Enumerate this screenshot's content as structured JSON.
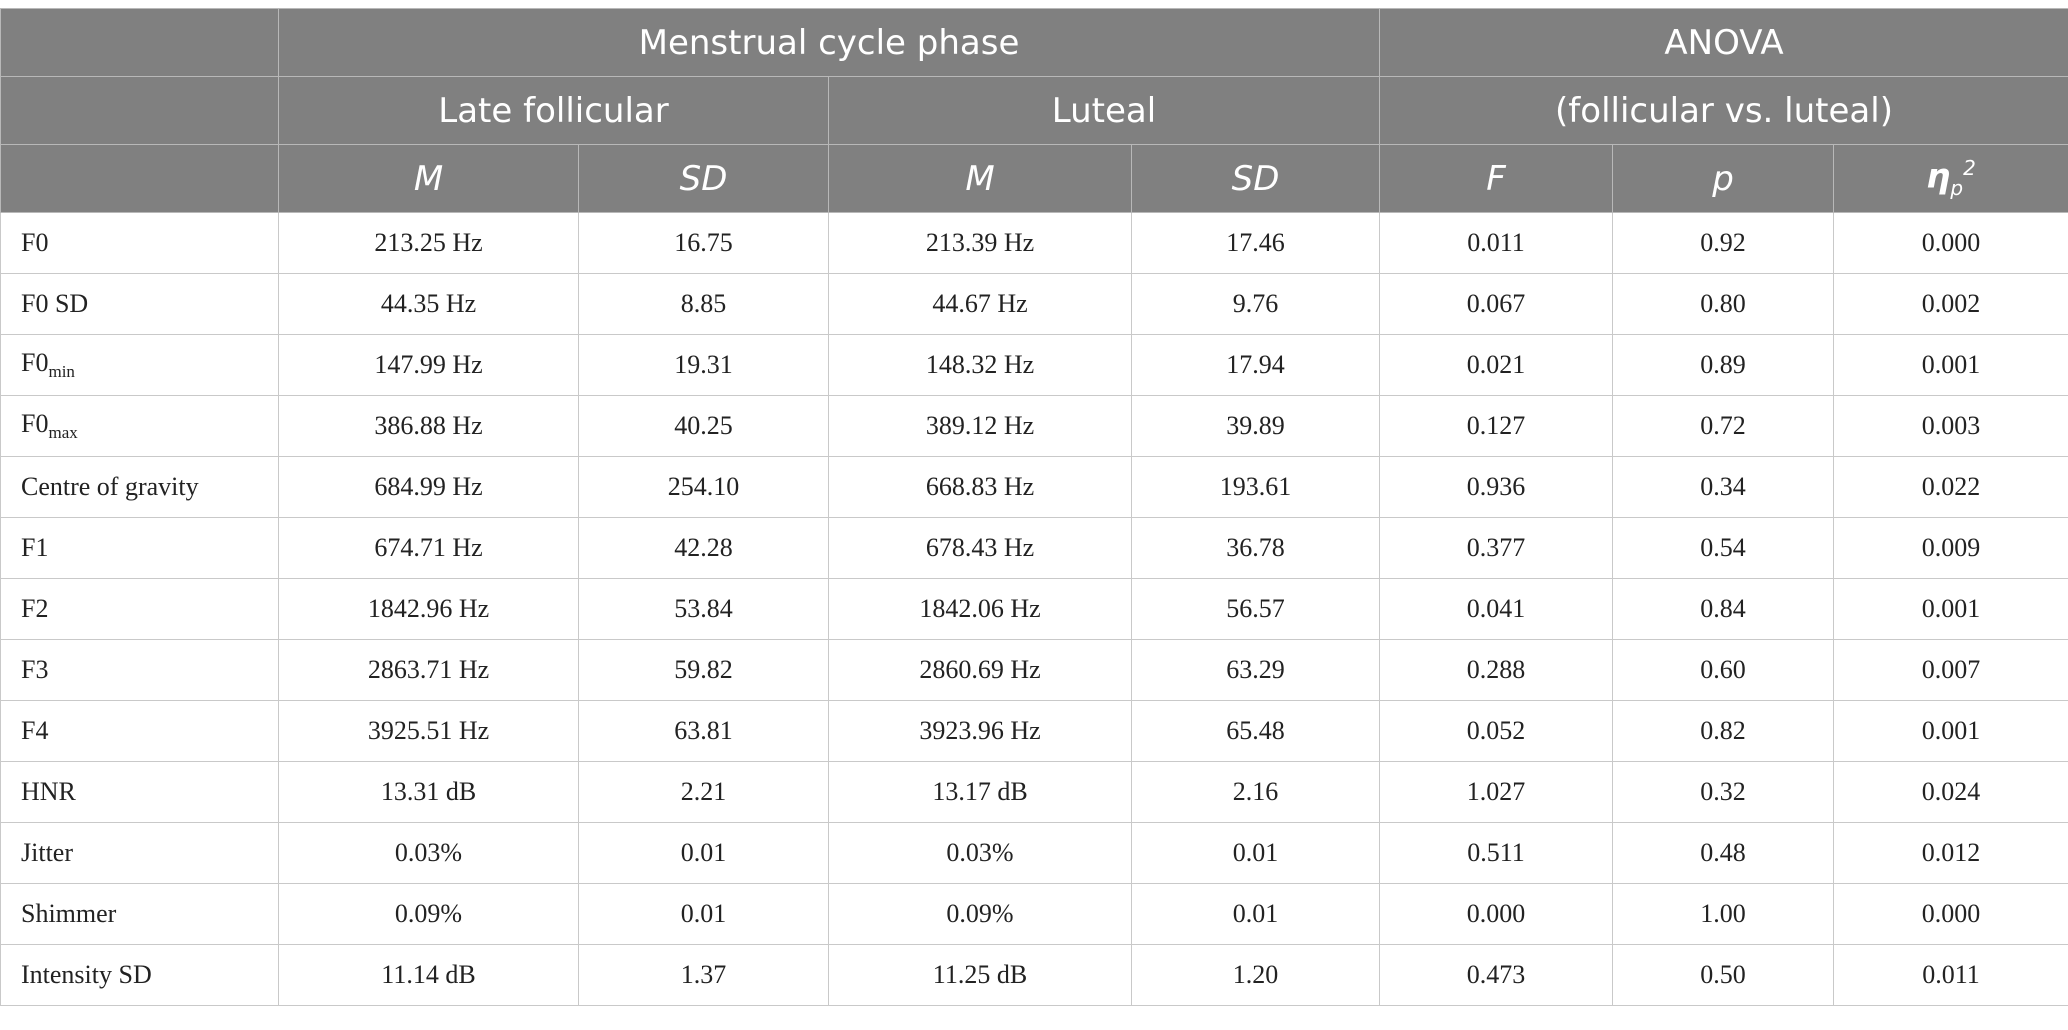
{
  "header": {
    "phase_title": "Menstrual cycle phase",
    "anova_title": "ANOVA",
    "anova_subtitle": "(follicular vs. luteal)",
    "late_follicular": "Late follicular",
    "luteal": "Luteal",
    "col_m": "M",
    "col_sd": "SD",
    "col_f": "F",
    "col_p": "p",
    "col_eta": "η",
    "col_eta_sub": "p",
    "col_eta_sup": "2"
  },
  "rows": [
    {
      "label": "F0",
      "sub": "",
      "fm": "213.25 Hz",
      "fsd": "16.75",
      "lm": "213.39 Hz",
      "lsd": "17.46",
      "f": "0.011",
      "p": "0.92",
      "eta": "0.000"
    },
    {
      "label": "F0 SD",
      "sub": "",
      "fm": "44.35 Hz",
      "fsd": "8.85",
      "lm": "44.67 Hz",
      "lsd": "9.76",
      "f": "0.067",
      "p": "0.80",
      "eta": "0.002"
    },
    {
      "label": "F0",
      "sub": "min",
      "fm": "147.99 Hz",
      "fsd": "19.31",
      "lm": "148.32 Hz",
      "lsd": "17.94",
      "f": "0.021",
      "p": "0.89",
      "eta": "0.001"
    },
    {
      "label": "F0",
      "sub": "max",
      "fm": "386.88 Hz",
      "fsd": "40.25",
      "lm": "389.12 Hz",
      "lsd": "39.89",
      "f": "0.127",
      "p": "0.72",
      "eta": "0.003"
    },
    {
      "label": "Centre of gravity",
      "sub": "",
      "fm": "684.99 Hz",
      "fsd": "254.10",
      "lm": "668.83 Hz",
      "lsd": "193.61",
      "f": "0.936",
      "p": "0.34",
      "eta": "0.022"
    },
    {
      "label": "F1",
      "sub": "",
      "fm": "674.71 Hz",
      "fsd": "42.28",
      "lm": "678.43 Hz",
      "lsd": "36.78",
      "f": "0.377",
      "p": "0.54",
      "eta": "0.009"
    },
    {
      "label": "F2",
      "sub": "",
      "fm": "1842.96 Hz",
      "fsd": "53.84",
      "lm": "1842.06 Hz",
      "lsd": "56.57",
      "f": "0.041",
      "p": "0.84",
      "eta": "0.001"
    },
    {
      "label": "F3",
      "sub": "",
      "fm": "2863.71 Hz",
      "fsd": "59.82",
      "lm": "2860.69 Hz",
      "lsd": "63.29",
      "f": "0.288",
      "p": "0.60",
      "eta": "0.007"
    },
    {
      "label": "F4",
      "sub": "",
      "fm": "3925.51 Hz",
      "fsd": "63.81",
      "lm": "3923.96 Hz",
      "lsd": "65.48",
      "f": "0.052",
      "p": "0.82",
      "eta": "0.001"
    },
    {
      "label": "HNR",
      "sub": "",
      "fm": "13.31 dB",
      "fsd": "2.21",
      "lm": "13.17 dB",
      "lsd": "2.16",
      "f": "1.027",
      "p": "0.32",
      "eta": "0.024"
    },
    {
      "label": "Jitter",
      "sub": "",
      "fm": "0.03%",
      "fsd": "0.01",
      "lm": "0.03%",
      "lsd": "0.01",
      "f": "0.511",
      "p": "0.48",
      "eta": "0.012"
    },
    {
      "label": "Shimmer",
      "sub": "",
      "fm": "0.09%",
      "fsd": "0.01",
      "lm": "0.09%",
      "lsd": "0.01",
      "f": "0.000",
      "p": "1.00",
      "eta": "0.000"
    },
    {
      "label": "Intensity SD",
      "sub": "",
      "fm": "11.14 dB",
      "fsd": "1.37",
      "lm": "11.25 dB",
      "lsd": "1.20",
      "f": "0.473",
      "p": "0.50",
      "eta": "0.011"
    }
  ]
}
